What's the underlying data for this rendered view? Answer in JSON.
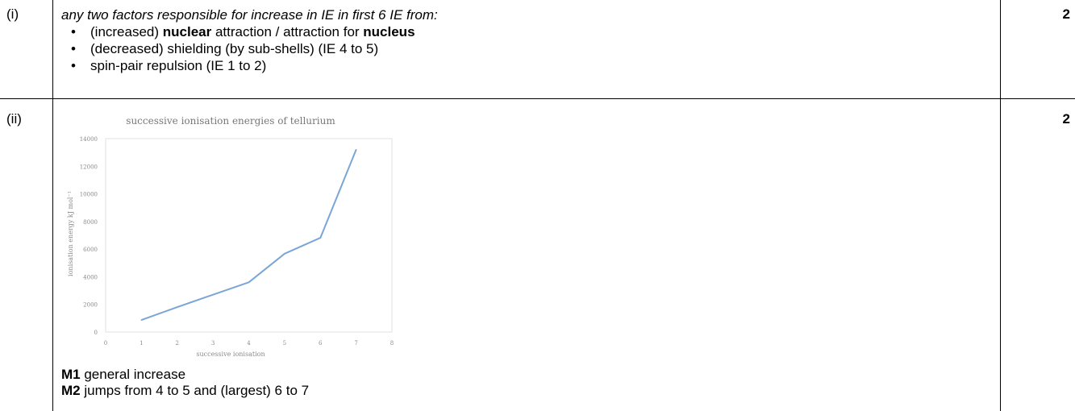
{
  "row_i": {
    "label": "(i)",
    "marks": "2",
    "intro": "any two factors responsible for increase in IE in first 6 IE from:",
    "bullets": [
      {
        "pre": "(increased) ",
        "bold": "nuclear",
        "mid": " attraction / attraction for ",
        "bold2": "nucleus",
        "post": ""
      },
      {
        "pre": "(decreased) shielding (by sub-shells) (IE 4 to 5)",
        "bold": "",
        "mid": "",
        "bold2": "",
        "post": ""
      },
      {
        "pre": "spin-pair repulsion (IE 1 to 2)",
        "bold": "",
        "mid": "",
        "bold2": "",
        "post": ""
      }
    ]
  },
  "row_ii": {
    "label": "(ii)",
    "marks": "2",
    "m1_label": "M1",
    "m1_text": " general increase",
    "m2_label": "M2",
    "m2_text": " jumps from 4 to 5 and (largest) 6 to 7"
  },
  "chart_data": {
    "type": "line",
    "title": "successive ionisation energies of tellurium",
    "xlabel": "successive ionisation",
    "ylabel": "ionisation energy kJ mol⁻¹",
    "x_ticks": [
      "0",
      "1",
      "2",
      "3",
      "4",
      "5",
      "6",
      "7",
      "8"
    ],
    "y_ticks": [
      "0",
      "2000",
      "4000",
      "6000",
      "8000",
      "10000",
      "12000",
      "14000"
    ],
    "xlim": [
      0,
      8
    ],
    "ylim": [
      0,
      14000
    ],
    "grid": false,
    "series": [
      {
        "x": [
          1,
          2,
          3,
          4,
          5,
          6,
          7
        ],
        "values": [
          870,
          1800,
          2700,
          3600,
          5670,
          6820,
          13200
        ],
        "color": "#7aa6d6"
      }
    ]
  }
}
